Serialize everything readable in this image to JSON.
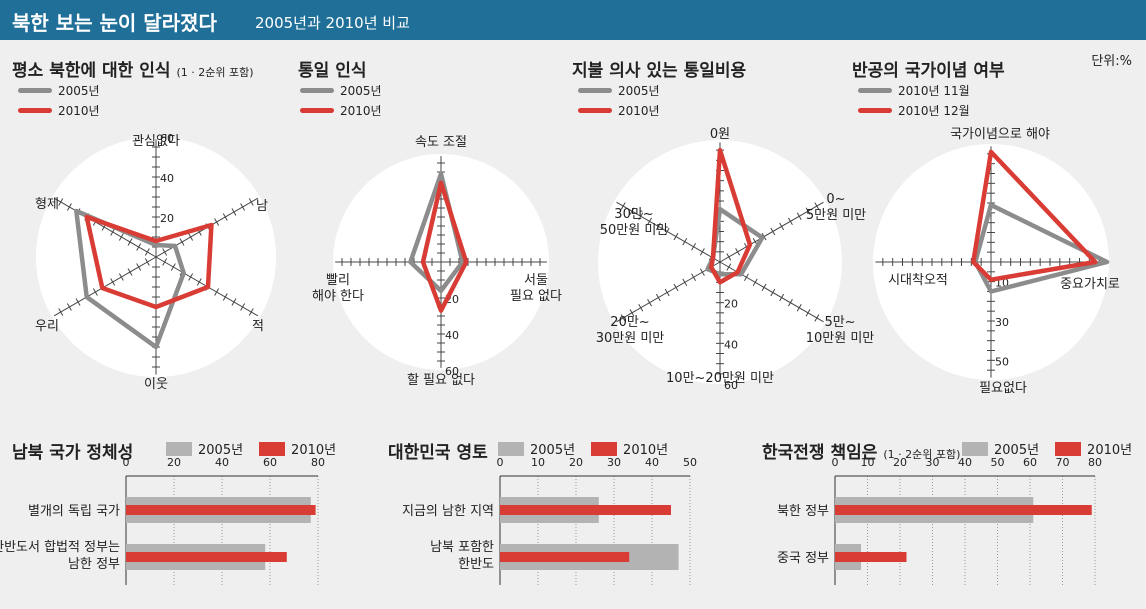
{
  "header": {
    "title": "북한 보는 눈이 달라졌다",
    "subtitle": "2005년과 2010년 비교"
  },
  "unit": "단위:%",
  "colors": {
    "header_bg": "#1f6f98",
    "series_2005": "#8c8c8c",
    "series_2010": "#d93c34",
    "bar_2005": "#b3b3b3"
  },
  "chart_data": [
    {
      "type": "radar",
      "title": "평소 북한에 대한 인식",
      "note": "(1 · 2순위 포함)",
      "series_names": [
        "2005년",
        "2010년"
      ],
      "axes": [
        "관심없다",
        "남",
        "적",
        "이웃",
        "우리",
        "형제"
      ],
      "ticks": [
        "20",
        "40",
        "60"
      ],
      "rmax": 60,
      "series": [
        {
          "name": "2005년",
          "values": [
            6,
            11,
            16,
            45,
            40,
            46
          ]
        },
        {
          "name": "2010년",
          "values": [
            8,
            32,
            30,
            25,
            31,
            40
          ]
        }
      ]
    },
    {
      "type": "radar",
      "title": "통일 인식",
      "series_names": [
        "2005년",
        "2010년"
      ],
      "axes": [
        "속도 조절",
        "서둘 필요 없다",
        "할 필요 없다",
        "빨리 해야 한다"
      ],
      "ticks": [
        "20",
        "40",
        "60"
      ],
      "rmax": 60,
      "series": [
        {
          "name": "2005년",
          "values": [
            49,
            12,
            16,
            17
          ]
        },
        {
          "name": "2010년",
          "values": [
            44,
            14,
            27,
            10
          ]
        }
      ]
    },
    {
      "type": "radar",
      "title": "지불 의사 있는 통일비용",
      "series_names": [
        "2005년",
        "2010년"
      ],
      "axes": [
        "0원",
        "0~ 5만원 미만",
        "5만~ 10만원 미만",
        "10만~20만원 미만",
        "20만~ 30만원 미만",
        "30만~ 50만원 미만"
      ],
      "ticks": [
        "20",
        "40",
        "60"
      ],
      "rmax": 60,
      "series": [
        {
          "name": "2005년",
          "values": [
            26,
            24,
            12,
            6,
            7,
            4
          ]
        },
        {
          "name": "2010년",
          "values": [
            55,
            17,
            10,
            10,
            5,
            4
          ]
        }
      ]
    },
    {
      "type": "radar",
      "title": "반공의 국가이념 여부",
      "series_names": [
        "2010년 11월",
        "2010년 12월"
      ],
      "axes": [
        "국가이념으로 해야",
        "중요가치로",
        "필요없다",
        "시대착오적"
      ],
      "ticks": [
        "10",
        "30",
        "50"
      ],
      "rmax": 60,
      "series": [
        {
          "name": "2010년 11월",
          "values": [
            29,
            59,
            15,
            8
          ]
        },
        {
          "name": "2010년 12월",
          "values": [
            56,
            53,
            9,
            9
          ]
        }
      ]
    },
    {
      "type": "bar",
      "orientation": "horizontal",
      "title": "남북 국가 정체성",
      "series_names": [
        "2005년",
        "2010년"
      ],
      "ticks": [
        "0",
        "20",
        "40",
        "60",
        "80"
      ],
      "xmax": 80,
      "categories": [
        "별개의 독립 국가",
        "한반도서 합법적 정부는 남한 정부"
      ],
      "series": [
        {
          "name": "2005년",
          "values": [
            77,
            58
          ]
        },
        {
          "name": "2010년",
          "values": [
            79,
            67
          ]
        }
      ]
    },
    {
      "type": "bar",
      "orientation": "horizontal",
      "title": "대한민국 영토",
      "series_names": [
        "2005년",
        "2010년"
      ],
      "ticks": [
        "0",
        "10",
        "20",
        "30",
        "40",
        "50"
      ],
      "xmax": 50,
      "categories": [
        "지금의 남한 지역",
        "남북 포함한 한반도"
      ],
      "series": [
        {
          "name": "2005년",
          "values": [
            26,
            47
          ]
        },
        {
          "name": "2010년",
          "values": [
            45,
            34
          ]
        }
      ]
    },
    {
      "type": "bar",
      "orientation": "horizontal",
      "title": "한국전쟁 책임은",
      "note": "(1 · 2순위 포함)",
      "series_names": [
        "2005년",
        "2010년"
      ],
      "ticks": [
        "0",
        "10",
        "20",
        "30",
        "40",
        "50",
        "60",
        "70",
        "80"
      ],
      "xmax": 80,
      "categories": [
        "북한 정부",
        "중국 정부"
      ],
      "series": [
        {
          "name": "2005년",
          "values": [
            61,
            8
          ]
        },
        {
          "name": "2010년",
          "values": [
            79,
            22
          ]
        }
      ]
    }
  ]
}
